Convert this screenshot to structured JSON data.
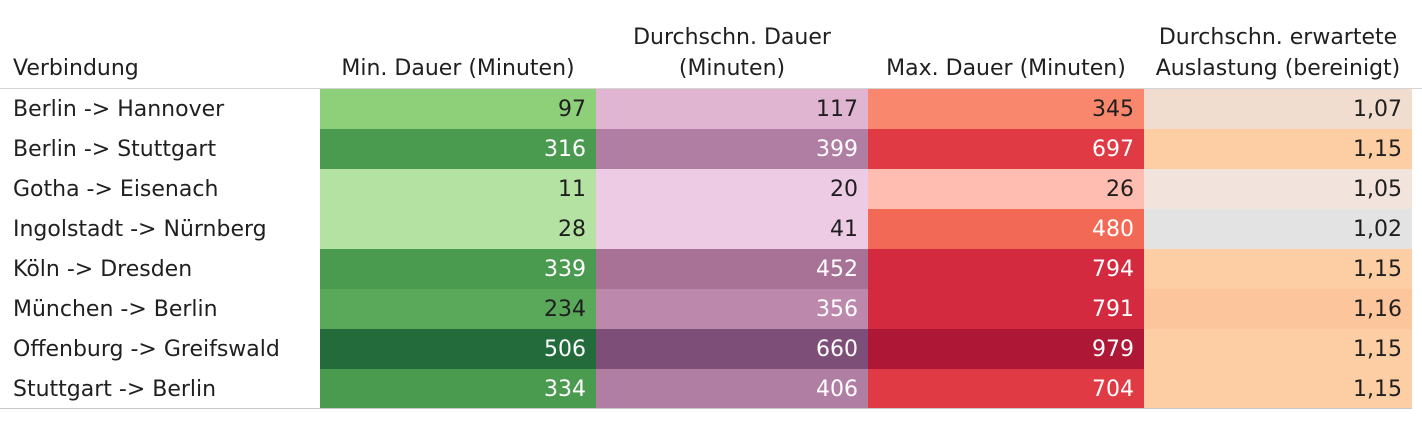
{
  "chart_data": {
    "type": "table",
    "columns": [
      "Verbindung",
      "Min. Dauer (Minuten)",
      "Durchschn. Dauer (Minuten)",
      "Max. Dauer (Minuten)",
      "Durchschn. erwartete Auslastung (bereinigt)"
    ],
    "header_lines": [
      [
        "Verbindung"
      ],
      [
        "Min. Dauer (Minuten)"
      ],
      [
        "Durchschn. Dauer",
        "(Minuten)"
      ],
      [
        "Max. Dauer (Minuten)"
      ],
      [
        "Durchschn. erwartete",
        "Auslastung (bereinigt)"
      ]
    ],
    "rows": [
      {
        "verbindung": "Berlin -> Hannover",
        "min": "97",
        "avg": "117",
        "max": "345",
        "auslastung": "1,07"
      },
      {
        "verbindung": "Berlin -> Stuttgart",
        "min": "316",
        "avg": "399",
        "max": "697",
        "auslastung": "1,15"
      },
      {
        "verbindung": "Gotha -> Eisenach",
        "min": "11",
        "avg": "20",
        "max": "26",
        "auslastung": "1,05"
      },
      {
        "verbindung": "Ingolstadt -> Nürnberg",
        "min": "28",
        "avg": "41",
        "max": "480",
        "auslastung": "1,02"
      },
      {
        "verbindung": "Köln -> Dresden",
        "min": "339",
        "avg": "452",
        "max": "794",
        "auslastung": "1,15"
      },
      {
        "verbindung": "München -> Berlin",
        "min": "234",
        "avg": "356",
        "max": "791",
        "auslastung": "1,16"
      },
      {
        "verbindung": "Offenburg -> Greifswald",
        "min": "506",
        "avg": "660",
        "max": "979",
        "auslastung": "1,15"
      },
      {
        "verbindung": "Stuttgart -> Berlin",
        "min": "334",
        "avg": "406",
        "max": "704",
        "auslastung": "1,15"
      }
    ],
    "cell_colors": {
      "min": [
        "#8ecf7a",
        "#4a9b50",
        "#b4e2a2",
        "#b4e2a2",
        "#4a9b50",
        "#5aa85a",
        "#236b3b",
        "#4a9b50"
      ],
      "avg": [
        "#e0b5d2",
        "#b07da3",
        "#eecbe5",
        "#eecbe5",
        "#a87296",
        "#bc88ab",
        "#7d4f78",
        "#b07da3"
      ],
      "max": [
        "#f9876d",
        "#e03a44",
        "#ffbcb0",
        "#f26a56",
        "#d42a40",
        "#d42a40",
        "#ae1735",
        "#e03a44"
      ],
      "auslastung": [
        "#f0ddd0",
        "#fdcda4",
        "#f2e3dc",
        "#e3e3e3",
        "#fdcda4",
        "#fdc59c",
        "#fdcda4",
        "#fdcda4"
      ]
    },
    "text_colors": {
      "min": [
        "#1f1f1f",
        "#ffffff",
        "#1f1f1f",
        "#1f1f1f",
        "#ffffff",
        "#1f1f1f",
        "#ffffff",
        "#ffffff"
      ],
      "avg": [
        "#1f1f1f",
        "#ffffff",
        "#1f1f1f",
        "#1f1f1f",
        "#ffffff",
        "#ffffff",
        "#ffffff",
        "#ffffff"
      ],
      "max": [
        "#1f1f1f",
        "#ffffff",
        "#1f1f1f",
        "#ffffff",
        "#ffffff",
        "#ffffff",
        "#ffffff",
        "#ffffff"
      ],
      "auslastung": [
        "#1f1f1f",
        "#1f1f1f",
        "#1f1f1f",
        "#1f1f1f",
        "#1f1f1f",
        "#1f1f1f",
        "#1f1f1f",
        "#1f1f1f"
      ]
    }
  }
}
